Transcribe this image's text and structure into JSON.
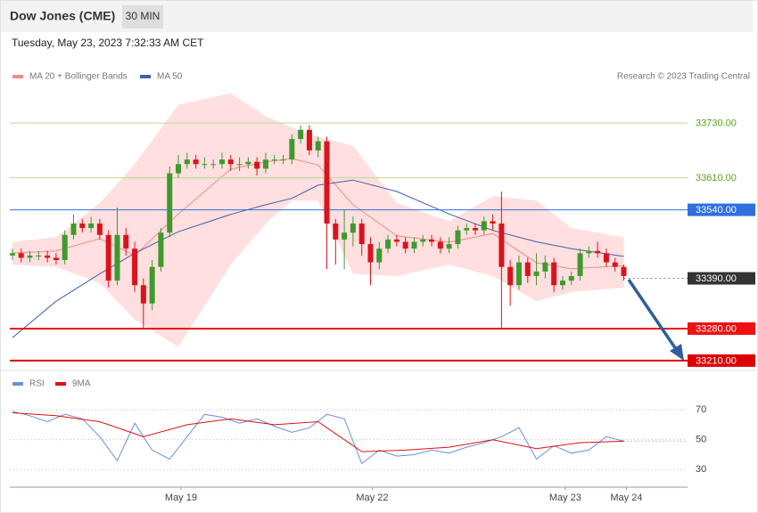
{
  "header": {
    "title": "Dow Jones (CME)",
    "timeframe": "30 MIN",
    "date": "Tuesday, May 23, 2023 7:32:33 AM CET"
  },
  "chart_data": [
    {
      "type": "candlestick",
      "source": "Research © 2023 Trading Central",
      "up_color": "#3f9a2e",
      "down_color": "#d9141c",
      "xlim": [
        -0.3,
        77.3
      ],
      "ylim": [
        33200,
        33814
      ],
      "open": [
        33440,
        33445,
        33435,
        33440,
        33440,
        33435,
        33430,
        33485,
        33510,
        33500,
        33510,
        33485,
        33385,
        33485,
        33455,
        33375,
        33335,
        33415,
        33490,
        33620,
        33640,
        33650,
        33640,
        33640,
        33640,
        33650,
        33640,
        33640,
        33645,
        33630,
        33650,
        33650,
        33650,
        33695,
        33715,
        33670,
        33690,
        33510,
        33475,
        33490,
        33510,
        33465,
        33425,
        33455,
        33475,
        33470,
        33455,
        33470,
        33475,
        33470,
        33455,
        33465,
        33495,
        33500,
        33495,
        33515,
        33510,
        33415,
        33375,
        33425,
        33395,
        33405,
        33425,
        33375,
        33385,
        33395,
        33445,
        33450,
        33445,
        33425,
        33415
      ],
      "high": [
        33455,
        33455,
        33450,
        33450,
        33450,
        33445,
        33495,
        33530,
        33520,
        33525,
        33520,
        33495,
        33545,
        33500,
        33470,
        33390,
        33430,
        33500,
        33635,
        33660,
        33665,
        33660,
        33655,
        33650,
        33665,
        33660,
        33655,
        33655,
        33655,
        33665,
        33660,
        33660,
        33705,
        33725,
        33725,
        33700,
        33700,
        33520,
        33540,
        33525,
        33520,
        33480,
        33470,
        33485,
        33485,
        33480,
        33480,
        33485,
        33485,
        33480,
        33480,
        33505,
        33510,
        33510,
        33525,
        33530,
        33580,
        33430,
        33440,
        33435,
        33445,
        33440,
        33435,
        33395,
        33405,
        33455,
        33460,
        33470,
        33455,
        33435,
        33420
      ],
      "low": [
        33430,
        33425,
        33425,
        33430,
        33425,
        33420,
        33420,
        33475,
        33490,
        33490,
        33475,
        33370,
        33375,
        33440,
        33360,
        33280,
        33320,
        33405,
        33480,
        33610,
        33630,
        33630,
        33630,
        33630,
        33630,
        33625,
        33625,
        33630,
        33615,
        33620,
        33640,
        33640,
        33640,
        33685,
        33660,
        33655,
        33410,
        33420,
        33410,
        33460,
        33440,
        33375,
        33410,
        33445,
        33460,
        33445,
        33445,
        33460,
        33460,
        33445,
        33445,
        33455,
        33485,
        33485,
        33485,
        33495,
        33280,
        33330,
        33365,
        33380,
        33375,
        33390,
        33360,
        33365,
        33375,
        33385,
        33435,
        33435,
        33415,
        33405,
        33385
      ],
      "close": [
        33445,
        33435,
        33440,
        33440,
        33435,
        33430,
        33485,
        33510,
        33500,
        33510,
        33485,
        33385,
        33485,
        33455,
        33375,
        33335,
        33415,
        33490,
        33620,
        33640,
        33650,
        33640,
        33640,
        33640,
        33650,
        33640,
        33640,
        33645,
        33630,
        33650,
        33650,
        33650,
        33695,
        33715,
        33670,
        33690,
        33510,
        33475,
        33490,
        33510,
        33465,
        33425,
        33455,
        33475,
        33470,
        33455,
        33470,
        33475,
        33470,
        33455,
        33465,
        33495,
        33500,
        33495,
        33515,
        33510,
        33415,
        33375,
        33425,
        33395,
        33405,
        33425,
        33375,
        33385,
        33395,
        33445,
        33450,
        33445,
        33425,
        33415,
        33395
      ],
      "series": [
        {
          "name": "MA 20 + Bollinger Bands",
          "color": "#f08a8a",
          "band_color": "#ffd9d9",
          "x": [
            0,
            5,
            10,
            14,
            19,
            25,
            29,
            32,
            35,
            39,
            44,
            50,
            55,
            60,
            64,
            70
          ],
          "values": [
            33445,
            33450,
            33477,
            33440,
            33531,
            33629,
            33645,
            33652,
            33638,
            33551,
            33483,
            33469,
            33488,
            33424,
            33411,
            33418
          ],
          "upper": [
            33470,
            33480,
            33555,
            33640,
            33770,
            33795,
            33745,
            33720,
            33700,
            33680,
            33555,
            33515,
            33570,
            33560,
            33500,
            33480
          ],
          "lower": [
            33420,
            33415,
            33380,
            33300,
            33240,
            33420,
            33510,
            33560,
            33560,
            33400,
            33395,
            33420,
            33395,
            33340,
            33360,
            33370
          ]
        },
        {
          "name": "MA 50",
          "color": "#3f5fa8",
          "x": [
            0,
            5,
            10,
            14,
            19,
            25,
            29,
            32,
            35,
            39,
            44,
            50,
            55,
            60,
            64,
            70
          ],
          "values": [
            33260,
            33340,
            33400,
            33445,
            33492,
            33530,
            33551,
            33565,
            33594,
            33605,
            33580,
            33531,
            33495,
            33470,
            33455,
            33438
          ]
        }
      ],
      "levels": [
        {
          "value": 33730,
          "label": "33730.00",
          "color": "#b7dc90",
          "text_color": "#5aa21e",
          "style": "thin",
          "boxed": false
        },
        {
          "value": 33610,
          "label": "33610.00",
          "color": "#b7dc90",
          "text_color": "#5aa21e",
          "style": "thin",
          "boxed": false
        },
        {
          "value": 33540,
          "label": "33540.00",
          "color": "#2f6fde",
          "text_color": "#ffffff",
          "style": "thin",
          "boxed": true
        },
        {
          "value": 33390,
          "label": "33390.00",
          "color": "#333333",
          "text_color": "#ffffff",
          "style": "dotted",
          "boxed": true
        },
        {
          "value": 33280,
          "label": "33280.00",
          "color": "#ee1111",
          "text_color": "#ffffff",
          "style": "bold",
          "boxed": true
        },
        {
          "value": 33210,
          "label": "33210.00",
          "color": "#dd0000",
          "text_color": "#ffffff",
          "style": "bold",
          "boxed": true
        }
      ]
    },
    {
      "type": "line",
      "xlim": [
        -0.3,
        77.3
      ],
      "ylim": [
        20,
        82
      ],
      "yticks": [
        70,
        50,
        30
      ],
      "xticks": [
        {
          "value": 19.3,
          "label": "May 19"
        },
        {
          "value": 41.2,
          "label": "May 22"
        },
        {
          "value": 63.3,
          "label": "May 23"
        },
        {
          "value": 70.3,
          "label": "May 24"
        }
      ],
      "series": [
        {
          "name": "RSI",
          "color": "#6a8ee0",
          "x": [
            0,
            2,
            4,
            6,
            8,
            10,
            12,
            14,
            16,
            18,
            20,
            22,
            24,
            26,
            28,
            30,
            32,
            34,
            36,
            38,
            40,
            42,
            44,
            46,
            48,
            50,
            52,
            54,
            56,
            58,
            60,
            62,
            64,
            66,
            68,
            70
          ],
          "values": [
            69,
            66,
            62,
            67,
            64,
            52,
            36,
            61,
            43,
            37,
            52,
            67,
            65,
            61,
            64,
            59,
            55,
            58,
            67,
            64,
            34,
            43,
            39,
            40,
            43,
            41,
            45,
            48,
            52,
            58,
            37,
            46,
            41,
            43,
            52,
            49
          ]
        },
        {
          "name": "9MA",
          "color": "#e01010",
          "x": [
            0,
            5,
            10,
            15,
            20,
            25,
            30,
            35,
            40,
            45,
            50,
            55,
            60,
            65,
            70
          ],
          "values": [
            68,
            66,
            62,
            52,
            60,
            64,
            60,
            62,
            42,
            43,
            45,
            50,
            44,
            48,
            49
          ]
        }
      ]
    }
  ]
}
